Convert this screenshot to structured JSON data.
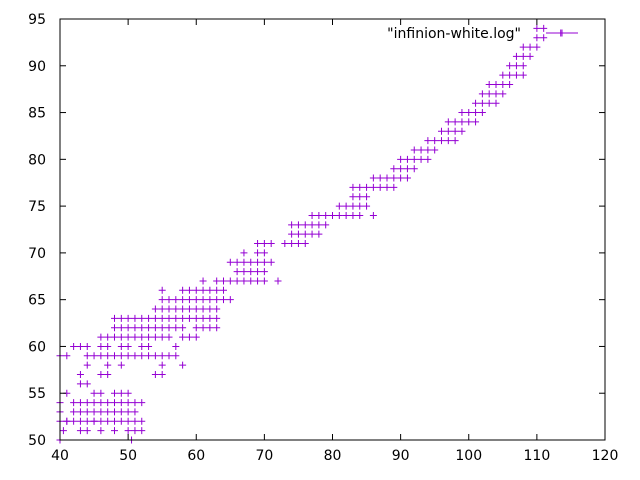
{
  "chart_data": {
    "type": "scatter",
    "title": "",
    "xlabel": "",
    "ylabel": "",
    "xlim": [
      40,
      120
    ],
    "ylim": [
      50,
      95
    ],
    "xticks": [
      40,
      50,
      60,
      70,
      80,
      90,
      100,
      110,
      120
    ],
    "yticks": [
      50,
      55,
      60,
      65,
      70,
      75,
      80,
      85,
      90,
      95
    ],
    "grid": false,
    "legend_position": "top-right",
    "marker": "plus",
    "color": "#9400d3",
    "series": [
      {
        "name": "\"infinion-white.log\"",
        "points": [
          [
            40,
            50
          ],
          [
            40.5,
            51
          ],
          [
            41,
            52
          ],
          [
            42,
            52
          ],
          [
            43,
            51
          ],
          [
            44,
            51
          ],
          [
            45,
            52
          ],
          [
            46,
            51
          ],
          [
            48,
            51
          ],
          [
            50,
            51
          ],
          [
            51,
            51
          ],
          [
            52,
            51
          ],
          [
            50.5,
            50
          ],
          [
            40,
            52
          ],
          [
            41,
            52
          ],
          [
            43,
            52
          ],
          [
            44,
            52
          ],
          [
            45,
            52
          ],
          [
            46,
            52
          ],
          [
            47,
            52
          ],
          [
            48,
            52
          ],
          [
            49,
            52
          ],
          [
            50,
            52
          ],
          [
            51,
            52
          ],
          [
            52,
            52
          ],
          [
            40,
            53
          ],
          [
            42,
            53
          ],
          [
            43,
            53
          ],
          [
            44,
            53
          ],
          [
            45,
            53
          ],
          [
            46,
            53
          ],
          [
            47,
            53
          ],
          [
            48,
            53
          ],
          [
            49,
            53
          ],
          [
            50,
            53
          ],
          [
            51,
            53
          ],
          [
            40,
            54
          ],
          [
            42,
            54
          ],
          [
            43,
            54
          ],
          [
            44,
            54
          ],
          [
            45,
            54
          ],
          [
            46,
            54
          ],
          [
            47,
            54
          ],
          [
            48,
            54
          ],
          [
            49,
            54
          ],
          [
            50,
            54
          ],
          [
            51,
            54
          ],
          [
            52,
            54
          ],
          [
            41,
            55
          ],
          [
            45,
            55
          ],
          [
            46,
            55
          ],
          [
            48,
            55
          ],
          [
            49,
            55
          ],
          [
            50,
            55
          ],
          [
            43,
            56
          ],
          [
            44,
            56
          ],
          [
            43,
            57
          ],
          [
            46,
            57
          ],
          [
            47,
            57
          ],
          [
            54,
            57
          ],
          [
            55,
            57
          ],
          [
            44,
            58
          ],
          [
            47,
            58
          ],
          [
            49,
            58
          ],
          [
            55,
            58
          ],
          [
            58,
            58
          ],
          [
            40,
            59
          ],
          [
            41,
            59
          ],
          [
            44,
            59
          ],
          [
            45,
            59
          ],
          [
            46,
            59
          ],
          [
            47,
            59
          ],
          [
            48,
            59
          ],
          [
            49,
            59
          ],
          [
            50,
            59
          ],
          [
            51,
            59
          ],
          [
            52,
            59
          ],
          [
            53,
            59
          ],
          [
            54,
            59
          ],
          [
            55,
            59
          ],
          [
            56,
            59
          ],
          [
            57,
            59
          ],
          [
            42,
            60
          ],
          [
            43,
            60
          ],
          [
            44,
            60
          ],
          [
            46,
            60
          ],
          [
            47,
            60
          ],
          [
            49,
            60
          ],
          [
            50,
            60
          ],
          [
            52,
            60
          ],
          [
            53,
            60
          ],
          [
            57,
            60
          ],
          [
            46,
            61
          ],
          [
            47,
            61
          ],
          [
            48,
            61
          ],
          [
            49,
            61
          ],
          [
            50,
            61
          ],
          [
            51,
            61
          ],
          [
            52,
            61
          ],
          [
            53,
            61
          ],
          [
            54,
            61
          ],
          [
            55,
            61
          ],
          [
            56,
            61
          ],
          [
            58,
            61
          ],
          [
            59,
            61
          ],
          [
            60,
            61
          ],
          [
            48,
            62
          ],
          [
            49,
            62
          ],
          [
            50,
            62
          ],
          [
            51,
            62
          ],
          [
            52,
            62
          ],
          [
            53,
            62
          ],
          [
            54,
            62
          ],
          [
            55,
            62
          ],
          [
            56,
            62
          ],
          [
            57,
            62
          ],
          [
            58,
            62
          ],
          [
            60,
            62
          ],
          [
            61,
            62
          ],
          [
            62,
            62
          ],
          [
            63,
            62
          ],
          [
            48,
            63
          ],
          [
            49,
            63
          ],
          [
            50,
            63
          ],
          [
            51,
            63
          ],
          [
            52,
            63
          ],
          [
            53,
            63
          ],
          [
            54,
            63
          ],
          [
            55,
            63
          ],
          [
            56,
            63
          ],
          [
            57,
            63
          ],
          [
            58,
            63
          ],
          [
            59,
            63
          ],
          [
            60,
            63
          ],
          [
            61,
            63
          ],
          [
            62,
            63
          ],
          [
            63,
            63
          ],
          [
            54,
            64
          ],
          [
            55,
            64
          ],
          [
            56,
            64
          ],
          [
            57,
            64
          ],
          [
            58,
            64
          ],
          [
            59,
            64
          ],
          [
            60,
            64
          ],
          [
            61,
            64
          ],
          [
            62,
            64
          ],
          [
            63,
            64
          ],
          [
            55,
            65
          ],
          [
            56,
            65
          ],
          [
            57,
            65
          ],
          [
            58,
            65
          ],
          [
            59,
            65
          ],
          [
            60,
            65
          ],
          [
            61,
            65
          ],
          [
            62,
            65
          ],
          [
            63,
            65
          ],
          [
            64,
            65
          ],
          [
            65,
            65
          ],
          [
            55,
            66
          ],
          [
            58,
            66
          ],
          [
            59,
            66
          ],
          [
            60,
            66
          ],
          [
            61,
            66
          ],
          [
            62,
            66
          ],
          [
            63,
            66
          ],
          [
            64,
            66
          ],
          [
            61,
            67
          ],
          [
            63,
            67
          ],
          [
            64,
            67
          ],
          [
            65,
            67
          ],
          [
            66,
            67
          ],
          [
            67,
            67
          ],
          [
            68,
            67
          ],
          [
            69,
            67
          ],
          [
            70,
            67
          ],
          [
            72,
            67
          ],
          [
            66,
            68
          ],
          [
            67,
            68
          ],
          [
            68,
            68
          ],
          [
            69,
            68
          ],
          [
            70,
            68
          ],
          [
            65,
            69
          ],
          [
            66,
            69
          ],
          [
            67,
            69
          ],
          [
            68,
            69
          ],
          [
            69,
            69
          ],
          [
            70,
            69
          ],
          [
            71,
            69
          ],
          [
            67,
            70
          ],
          [
            69,
            70
          ],
          [
            70,
            70
          ],
          [
            69,
            71
          ],
          [
            70,
            71
          ],
          [
            71,
            71
          ],
          [
            73,
            71
          ],
          [
            74,
            71
          ],
          [
            75,
            71
          ],
          [
            76,
            71
          ],
          [
            74,
            72
          ],
          [
            75,
            72
          ],
          [
            76,
            72
          ],
          [
            77,
            72
          ],
          [
            78,
            72
          ],
          [
            74,
            73
          ],
          [
            75,
            73
          ],
          [
            76,
            73
          ],
          [
            77,
            73
          ],
          [
            78,
            73
          ],
          [
            79,
            73
          ],
          [
            77,
            74
          ],
          [
            78,
            74
          ],
          [
            79,
            74
          ],
          [
            80,
            74
          ],
          [
            81,
            74
          ],
          [
            82,
            74
          ],
          [
            83,
            74
          ],
          [
            84,
            74
          ],
          [
            86,
            74
          ],
          [
            81,
            75
          ],
          [
            82,
            75
          ],
          [
            83,
            75
          ],
          [
            84,
            75
          ],
          [
            85,
            75
          ],
          [
            83,
            76
          ],
          [
            84,
            76
          ],
          [
            85,
            76
          ],
          [
            83,
            77
          ],
          [
            84,
            77
          ],
          [
            85,
            77
          ],
          [
            86,
            77
          ],
          [
            87,
            77
          ],
          [
            88,
            77
          ],
          [
            89,
            77
          ],
          [
            86,
            78
          ],
          [
            87,
            78
          ],
          [
            88,
            78
          ],
          [
            89,
            78
          ],
          [
            90,
            78
          ],
          [
            91,
            78
          ],
          [
            89,
            79
          ],
          [
            90,
            79
          ],
          [
            91,
            79
          ],
          [
            92,
            79
          ],
          [
            90,
            80
          ],
          [
            91,
            80
          ],
          [
            92,
            80
          ],
          [
            93,
            80
          ],
          [
            94,
            80
          ],
          [
            92,
            81
          ],
          [
            93,
            81
          ],
          [
            94,
            81
          ],
          [
            95,
            81
          ],
          [
            94,
            82
          ],
          [
            95,
            82
          ],
          [
            96,
            82
          ],
          [
            97,
            82
          ],
          [
            98,
            82
          ],
          [
            96,
            83
          ],
          [
            97,
            83
          ],
          [
            98,
            83
          ],
          [
            99,
            83
          ],
          [
            97,
            84
          ],
          [
            98,
            84
          ],
          [
            99,
            84
          ],
          [
            100,
            84
          ],
          [
            101,
            84
          ],
          [
            99,
            85
          ],
          [
            100,
            85
          ],
          [
            101,
            85
          ],
          [
            102,
            85
          ],
          [
            101,
            86
          ],
          [
            102,
            86
          ],
          [
            103,
            86
          ],
          [
            104,
            86
          ],
          [
            102,
            87
          ],
          [
            103,
            87
          ],
          [
            104,
            87
          ],
          [
            105,
            87
          ],
          [
            103,
            88
          ],
          [
            104,
            88
          ],
          [
            105,
            88
          ],
          [
            106,
            88
          ],
          [
            105,
            89
          ],
          [
            106,
            89
          ],
          [
            107,
            89
          ],
          [
            108,
            89
          ],
          [
            106,
            90
          ],
          [
            107,
            90
          ],
          [
            108,
            90
          ],
          [
            107,
            91
          ],
          [
            108,
            91
          ],
          [
            109,
            91
          ],
          [
            108,
            92
          ],
          [
            109,
            92
          ],
          [
            110,
            92
          ],
          [
            110,
            93
          ],
          [
            111,
            93
          ],
          [
            113.5,
            93.5
          ],
          [
            110,
            94
          ],
          [
            111,
            94
          ]
        ]
      }
    ]
  }
}
